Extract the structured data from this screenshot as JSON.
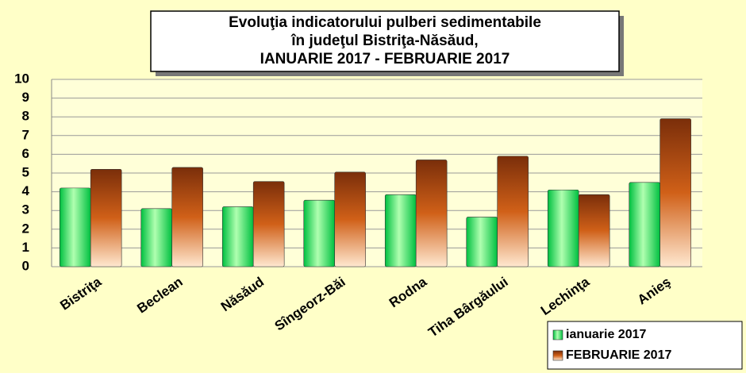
{
  "chart_data": {
    "type": "bar",
    "title": [
      "Evoluţia indicatorului pulberi sedimentabile",
      "în judeţul Bistriţa-Năsăud,",
      "IANUARIE 2017 - FEBRUARIE  2017"
    ],
    "categories": [
      "Bistriţa",
      "Beclean",
      "Năsăud",
      "Sîngeorz-Băi",
      "Rodna",
      "Tiha Bârgăului",
      "Lechinţa",
      "Anieş"
    ],
    "series": [
      {
        "name": "ianuarie 2017",
        "color": "#00c040",
        "values": [
          4.2,
          3.1,
          3.2,
          3.55,
          3.85,
          2.65,
          4.1,
          4.5
        ]
      },
      {
        "name": "FEBRUARIE 2017",
        "color": "#7a2e0a",
        "values": [
          5.2,
          5.3,
          4.55,
          5.05,
          5.7,
          5.9,
          3.85,
          7.9
        ]
      }
    ],
    "ylim": [
      0,
      10
    ],
    "yticks": [
      0,
      1,
      2,
      3,
      4,
      5,
      6,
      7,
      8,
      9,
      10
    ],
    "grid": true
  }
}
